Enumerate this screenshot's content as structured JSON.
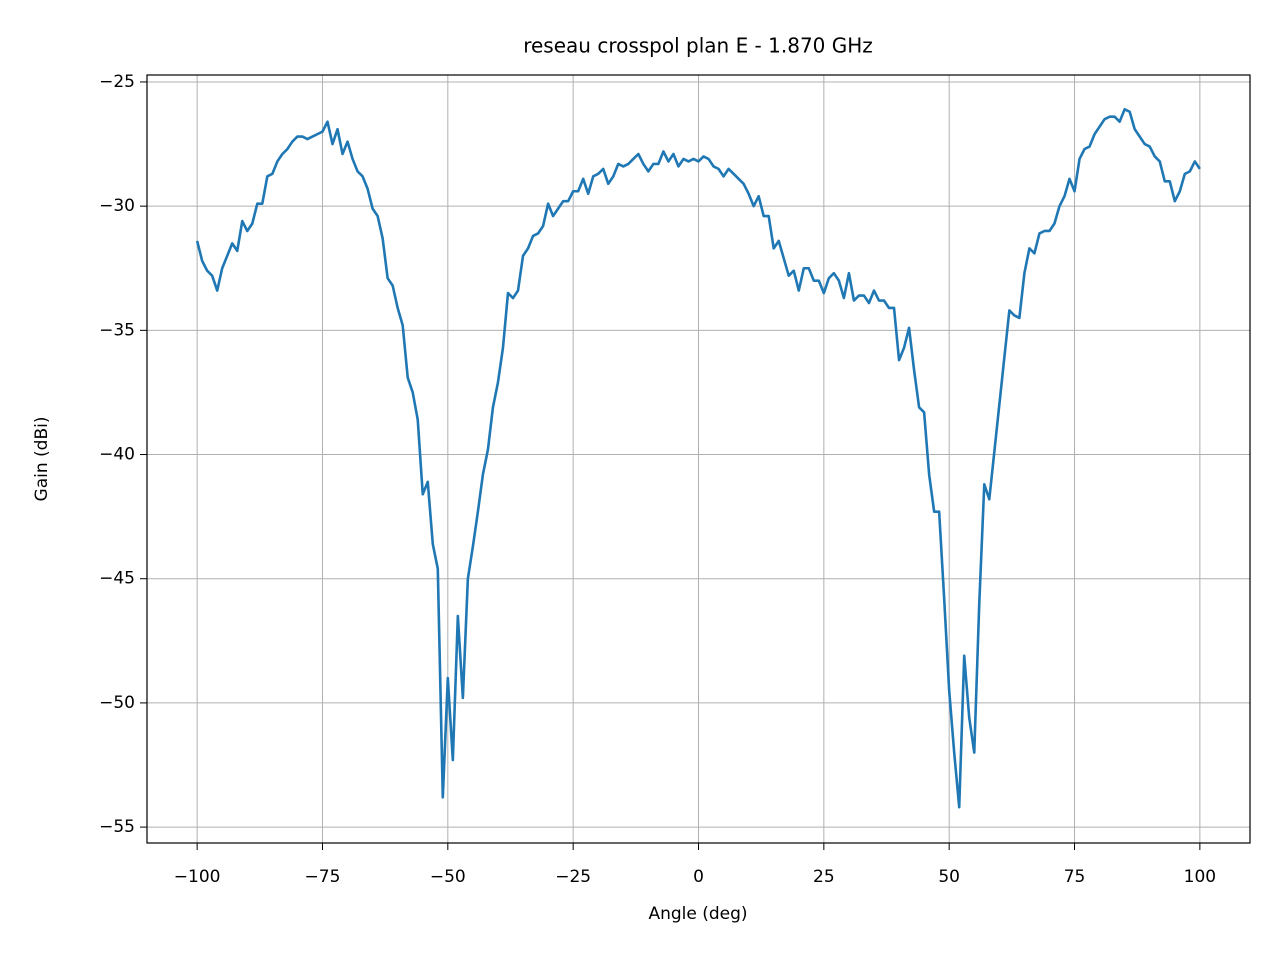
{
  "chart_data": {
    "type": "line",
    "title": "reseau crosspol plan E - 1.870 GHz",
    "x_label": "Angle (deg)",
    "y_label": "Gain (dBi)",
    "x": [
      -100,
      -99,
      -98,
      -97,
      -96,
      -95,
      -94,
      -93,
      -92,
      -91,
      -90,
      -89,
      -88,
      -87,
      -86,
      -85,
      -84,
      -83,
      -82,
      -81,
      -80,
      -79,
      -78,
      -77,
      -76,
      -75,
      -74,
      -73,
      -72,
      -71,
      -70,
      -69,
      -68,
      -67,
      -66,
      -65,
      -64,
      -63,
      -62,
      -61,
      -60,
      -59,
      -58,
      -57,
      -56,
      -55,
      -54,
      -53,
      -52,
      -51,
      -50,
      -49,
      -48,
      -47,
      -46,
      -45,
      -44,
      -43,
      -42,
      -41,
      -40,
      -39,
      -38,
      -37,
      -36,
      -35,
      -34,
      -33,
      -32,
      -31,
      -30,
      -29,
      -28,
      -27,
      -26,
      -25,
      -24,
      -23,
      -22,
      -21,
      -20,
      -19,
      -18,
      -17,
      -16,
      -15,
      -14,
      -13,
      -12,
      -11,
      -10,
      -9,
      -8,
      -7,
      -6,
      -5,
      -4,
      -3,
      -2,
      -1,
      0,
      1,
      2,
      3,
      4,
      5,
      6,
      7,
      8,
      9,
      10,
      11,
      12,
      13,
      14,
      15,
      16,
      17,
      18,
      19,
      20,
      21,
      22,
      23,
      24,
      25,
      26,
      27,
      28,
      29,
      30,
      31,
      32,
      33,
      34,
      35,
      36,
      37,
      38,
      39,
      40,
      41,
      42,
      43,
      44,
      45,
      46,
      47,
      48,
      49,
      50,
      51,
      52,
      53,
      54,
      55,
      56,
      57,
      58,
      59,
      60,
      61,
      62,
      63,
      64,
      65,
      66,
      67,
      68,
      69,
      70,
      71,
      72,
      73,
      74,
      75,
      76,
      77,
      78,
      79,
      80,
      81,
      82,
      83,
      84,
      85,
      86,
      87,
      88,
      89,
      90,
      91,
      92,
      93,
      94,
      95,
      96,
      97,
      98,
      99,
      100
    ],
    "values": [
      -31.4,
      -32.2,
      -32.6,
      -32.8,
      -33.4,
      -32.5,
      -32.0,
      -31.5,
      -31.8,
      -30.6,
      -31.0,
      -30.7,
      -29.9,
      -29.9,
      -28.8,
      -28.7,
      -28.2,
      -27.9,
      -27.7,
      -27.4,
      -27.2,
      -27.2,
      -27.3,
      -27.2,
      -27.1,
      -27.0,
      -26.6,
      -27.5,
      -26.9,
      -27.9,
      -27.4,
      -28.1,
      -28.6,
      -28.8,
      -29.3,
      -30.1,
      -30.4,
      -31.3,
      -32.9,
      -33.2,
      -34.1,
      -34.8,
      -36.9,
      -37.5,
      -38.6,
      -41.6,
      -41.1,
      -43.6,
      -44.6,
      -53.8,
      -49.0,
      -52.3,
      -46.5,
      -49.8,
      -45.0,
      -43.7,
      -42.3,
      -40.8,
      -39.8,
      -38.1,
      -37.1,
      -35.7,
      -33.5,
      -33.7,
      -33.4,
      -32.0,
      -31.7,
      -31.2,
      -31.1,
      -30.8,
      -29.9,
      -30.4,
      -30.1,
      -29.8,
      -29.8,
      -29.4,
      -29.4,
      -28.9,
      -29.5,
      -28.8,
      -28.7,
      -28.5,
      -29.1,
      -28.8,
      -28.3,
      -28.4,
      -28.3,
      -28.1,
      -27.9,
      -28.3,
      -28.6,
      -28.3,
      -28.3,
      -27.8,
      -28.2,
      -27.9,
      -28.4,
      -28.1,
      -28.2,
      -28.1,
      -28.2,
      -28.0,
      -28.1,
      -28.4,
      -28.5,
      -28.8,
      -28.5,
      -28.7,
      -28.9,
      -29.1,
      -29.5,
      -30.0,
      -29.6,
      -30.4,
      -30.4,
      -31.7,
      -31.4,
      -32.1,
      -32.8,
      -32.6,
      -33.4,
      -32.5,
      -32.5,
      -33.0,
      -33.0,
      -33.5,
      -32.9,
      -32.7,
      -33.0,
      -33.7,
      -32.7,
      -33.8,
      -33.6,
      -33.6,
      -33.9,
      -33.4,
      -33.8,
      -33.8,
      -34.1,
      -34.1,
      -36.2,
      -35.7,
      -34.9,
      -36.6,
      -38.1,
      -38.3,
      -40.8,
      -42.3,
      -42.3,
      -45.8,
      -49.5,
      -52.0,
      -54.2,
      -48.1,
      -50.6,
      -52.0,
      -46.0,
      -41.2,
      -41.8,
      -39.9,
      -38.0,
      -36.1,
      -34.2,
      -34.4,
      -34.5,
      -32.7,
      -31.7,
      -31.9,
      -31.1,
      -31.0,
      -31.0,
      -30.7,
      -30.0,
      -29.6,
      -28.9,
      -29.4,
      -28.1,
      -27.7,
      -27.6,
      -27.1,
      -26.8,
      -26.5,
      -26.4,
      -26.4,
      -26.6,
      -26.1,
      -26.2,
      -26.9,
      -27.2,
      -27.5,
      -27.6,
      -28.0,
      -28.2,
      -29.0,
      -29.0,
      -29.8,
      -29.4,
      -28.7,
      -28.6,
      -28.2,
      -28.5
    ],
    "color": "#1f77b4",
    "xlim": [
      -110,
      110
    ],
    "xticks": [
      {
        "value": -100,
        "label": "−100"
      },
      {
        "value": -75,
        "label": "−75"
      },
      {
        "value": -50,
        "label": "−50"
      },
      {
        "value": -25,
        "label": "−25"
      },
      0,
      25,
      50,
      75,
      100
    ],
    "ylim": [
      -55.64,
      -24.72
    ],
    "yticks": [
      {
        "value": -55,
        "label": "−55"
      },
      {
        "value": -50,
        "label": "−50"
      },
      {
        "value": -45,
        "label": "−45"
      },
      {
        "value": -40,
        "label": "−40"
      },
      {
        "value": -35,
        "label": "−35"
      },
      {
        "value": -30,
        "label": "−30"
      },
      {
        "value": -25,
        "label": "−25"
      }
    ],
    "grid": true
  }
}
